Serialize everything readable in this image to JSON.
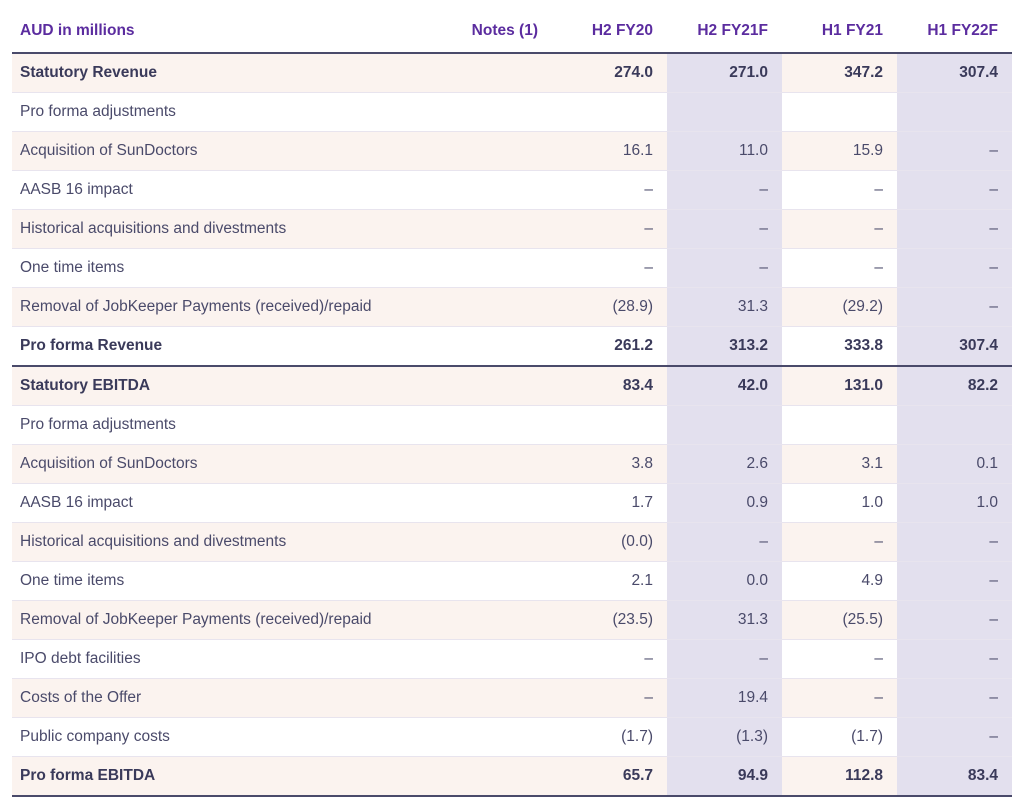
{
  "table": {
    "type": "table",
    "header_color": "#5b2c9f",
    "body_color": "#4a4a6a",
    "bold_color": "#3a3a5a",
    "stripe_color": "#fbf3ef",
    "shade_color": "#e3e0ee",
    "border_color": "#e8e4ee",
    "section_border_color": "#4a4a6a",
    "background_color": "#ffffff",
    "font_size": 15.5,
    "columns": [
      "AUD in millions",
      "Notes (1)",
      "H2 FY20",
      "H2 FY21F",
      "H1 FY21",
      "H1 FY22F"
    ],
    "shaded_cols": [
      3,
      5
    ],
    "rows": [
      {
        "cells": [
          "Statutory Revenue",
          "",
          "274.0",
          "271.0",
          "347.2",
          "307.4"
        ],
        "bold": true,
        "stripe": true
      },
      {
        "cells": [
          "Pro forma adjustments",
          "",
          "",
          "",
          "",
          ""
        ],
        "bold": false,
        "stripe": false
      },
      {
        "cells": [
          "Acquisition of SunDoctors",
          "",
          "16.1",
          "11.0",
          "15.9",
          "–"
        ],
        "bold": false,
        "stripe": true
      },
      {
        "cells": [
          "AASB 16 impact",
          "",
          "–",
          "–",
          "–",
          "–"
        ],
        "bold": false,
        "stripe": false
      },
      {
        "cells": [
          "Historical acquisitions and divestments",
          "",
          "–",
          "–",
          "–",
          "–"
        ],
        "bold": false,
        "stripe": true
      },
      {
        "cells": [
          "One time items",
          "",
          "–",
          "–",
          "–",
          "–"
        ],
        "bold": false,
        "stripe": false
      },
      {
        "cells": [
          "Removal of JobKeeper Payments (received)/repaid",
          "",
          "(28.9)",
          "31.3",
          "(29.2)",
          "–"
        ],
        "bold": false,
        "stripe": true
      },
      {
        "cells": [
          "Pro forma Revenue",
          "",
          "261.2",
          "313.2",
          "333.8",
          "307.4"
        ],
        "bold": true,
        "stripe": false,
        "section_end": true
      },
      {
        "cells": [
          "Statutory EBITDA",
          "",
          "83.4",
          "42.0",
          "131.0",
          "82.2"
        ],
        "bold": true,
        "stripe": true
      },
      {
        "cells": [
          "Pro forma adjustments",
          "",
          "",
          "",
          "",
          ""
        ],
        "bold": false,
        "stripe": false
      },
      {
        "cells": [
          "Acquisition of SunDoctors",
          "",
          "3.8",
          "2.6",
          "3.1",
          "0.1"
        ],
        "bold": false,
        "stripe": true
      },
      {
        "cells": [
          "AASB 16 impact",
          "",
          "1.7",
          "0.9",
          "1.0",
          "1.0"
        ],
        "bold": false,
        "stripe": false
      },
      {
        "cells": [
          "Historical acquisitions and divestments",
          "",
          "(0.0)",
          "–",
          "–",
          "–"
        ],
        "bold": false,
        "stripe": true
      },
      {
        "cells": [
          "One time items",
          "",
          "2.1",
          "0.0",
          "4.9",
          "–"
        ],
        "bold": false,
        "stripe": false
      },
      {
        "cells": [
          "Removal of JobKeeper Payments (received)/repaid",
          "",
          "(23.5)",
          "31.3",
          "(25.5)",
          "–"
        ],
        "bold": false,
        "stripe": true
      },
      {
        "cells": [
          "IPO debt facilities",
          "",
          "–",
          "–",
          "–",
          "–"
        ],
        "bold": false,
        "stripe": false
      },
      {
        "cells": [
          "Costs of the Offer",
          "",
          "–",
          "19.4",
          "–",
          "–"
        ],
        "bold": false,
        "stripe": true
      },
      {
        "cells": [
          "Public company costs",
          "",
          "(1.7)",
          "(1.3)",
          "(1.7)",
          "–"
        ],
        "bold": false,
        "stripe": false
      },
      {
        "cells": [
          "Pro forma EBITDA",
          "",
          "65.7",
          "94.9",
          "112.8",
          "83.4"
        ],
        "bold": true,
        "stripe": true,
        "section_end": true
      }
    ]
  }
}
